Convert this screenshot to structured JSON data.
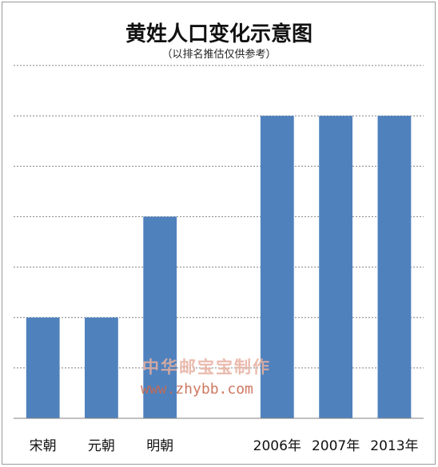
{
  "chart_data": {
    "type": "bar",
    "title": "黄姓人口变化示意图",
    "subtitle": "（以排名推估仅供参考）",
    "categories": [
      "宋朝",
      "元朝",
      "明朝",
      "",
      "2006年",
      "2007年",
      "2013年"
    ],
    "values": [
      2,
      2,
      4,
      null,
      6,
      6,
      6
    ],
    "ylim": [
      0,
      7
    ],
    "grid": true,
    "bar_color": "#4f81bd",
    "grid_color": "#808080"
  },
  "watermark": {
    "text_cn": "中华邮宝宝制作",
    "url": "www.zhybb.com"
  }
}
